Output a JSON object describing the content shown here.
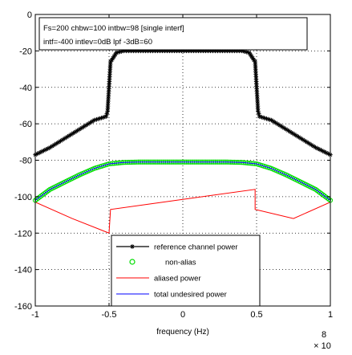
{
  "chart_data": {
    "type": "line",
    "annotation": [
      "Fs=200 chbw=100 intbw=98 [single interf]",
      "intf=-400 intlev=0dB lpf -3dB=60"
    ],
    "xlabel": "frequency (Hz)",
    "x_exponent_base": "× 10",
    "x_exponent_power": "8",
    "ylabel": "",
    "xlim": [
      -100000000,
      100000000
    ],
    "ylim": [
      -160,
      0
    ],
    "xtick_values": [
      -100000000,
      -50000000,
      0,
      50000000,
      100000000
    ],
    "xtick_labels": [
      "-1",
      "-0.5",
      "0",
      "0.5",
      "1"
    ],
    "ytick_values": [
      0,
      -20,
      -40,
      -60,
      -80,
      -100,
      -120,
      -140,
      -160
    ],
    "ytick_labels": [
      "0",
      "-20",
      "-40",
      "-60",
      "-80",
      "-100",
      "-120",
      "-140",
      "-160"
    ],
    "grid": true,
    "legend_position": "bottom-center",
    "colors": {
      "reference": "#000000",
      "nonalias": "#00dd00",
      "aliased": "#ff0000",
      "total": "#0000ff"
    },
    "series": [
      {
        "name": "reference channel power",
        "style": "black-asterisk-line",
        "x": [
          -100000000,
          -90000000,
          -80000000,
          -70000000,
          -60000000,
          -52000000,
          -51000000,
          -49000000,
          -45000000,
          -40000000,
          40000000,
          45000000,
          49000000,
          51000000,
          52000000,
          60000000,
          70000000,
          80000000,
          90000000,
          100000000
        ],
        "y": [
          -77,
          -73,
          -68,
          -63,
          -58,
          -56,
          -53,
          -26,
          -21,
          -20,
          -20,
          -21,
          -26,
          -53,
          -56,
          -58,
          -63,
          -68,
          -73,
          -77
        ]
      },
      {
        "name": "non-alias",
        "style": "green-circle-markers",
        "x": [
          -100000000,
          -90000000,
          -80000000,
          -70000000,
          -60000000,
          -50000000,
          -40000000,
          -30000000,
          30000000,
          40000000,
          50000000,
          60000000,
          70000000,
          80000000,
          90000000,
          100000000
        ],
        "y": [
          -102,
          -96,
          -92,
          -88,
          -84.5,
          -82,
          -81.2,
          -81,
          -81,
          -81.2,
          -82,
          -84.5,
          -88,
          -92,
          -96,
          -102
        ]
      },
      {
        "name": "aliased power",
        "style": "red-line",
        "segments": [
          {
            "x": [
              -100000000,
              -100000000,
              -100000000,
              -75000000,
              -50000000
            ],
            "y": [
              -135,
              -113,
              -103,
              -112,
              -120
            ]
          },
          {
            "x": [
              -50000000,
              -49000000,
              49000000,
              49000000,
              75000000,
              100000000,
              100000000
            ],
            "y": [
              -120,
              -107,
              -96,
              -107,
              -112,
              -103,
              -118
            ]
          }
        ]
      },
      {
        "name": "total undesired power",
        "style": "blue-line",
        "x": [
          -100000000,
          -90000000,
          -80000000,
          -70000000,
          -60000000,
          -50000000,
          -40000000,
          -30000000,
          30000000,
          40000000,
          50000000,
          60000000,
          70000000,
          80000000,
          90000000,
          100000000
        ],
        "y": [
          -102,
          -96,
          -92,
          -88,
          -84.5,
          -82,
          -81.2,
          -81,
          -81,
          -81.2,
          -82,
          -84.5,
          -88,
          -92,
          -96,
          -102
        ]
      }
    ]
  }
}
